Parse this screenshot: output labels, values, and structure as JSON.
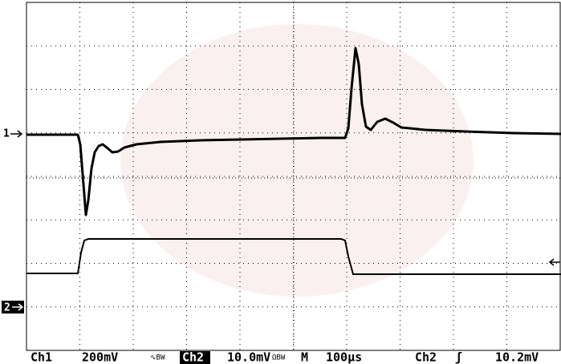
{
  "markers": {
    "ch1": "1",
    "ch2": "2"
  },
  "status_bar": {
    "ch1_label": "Ch1",
    "ch1_scale": "200mV",
    "ch1_flags": "∿BW",
    "ch2_label": "Ch2",
    "ch2_scale": "10.0mV",
    "ch2_flags": "ΩBW",
    "timebase_label": "M",
    "timebase": "100µs",
    "trigger_source": "Ch2",
    "trigger_slope": "ʃ",
    "trigger_level": "10.2mV"
  }
}
